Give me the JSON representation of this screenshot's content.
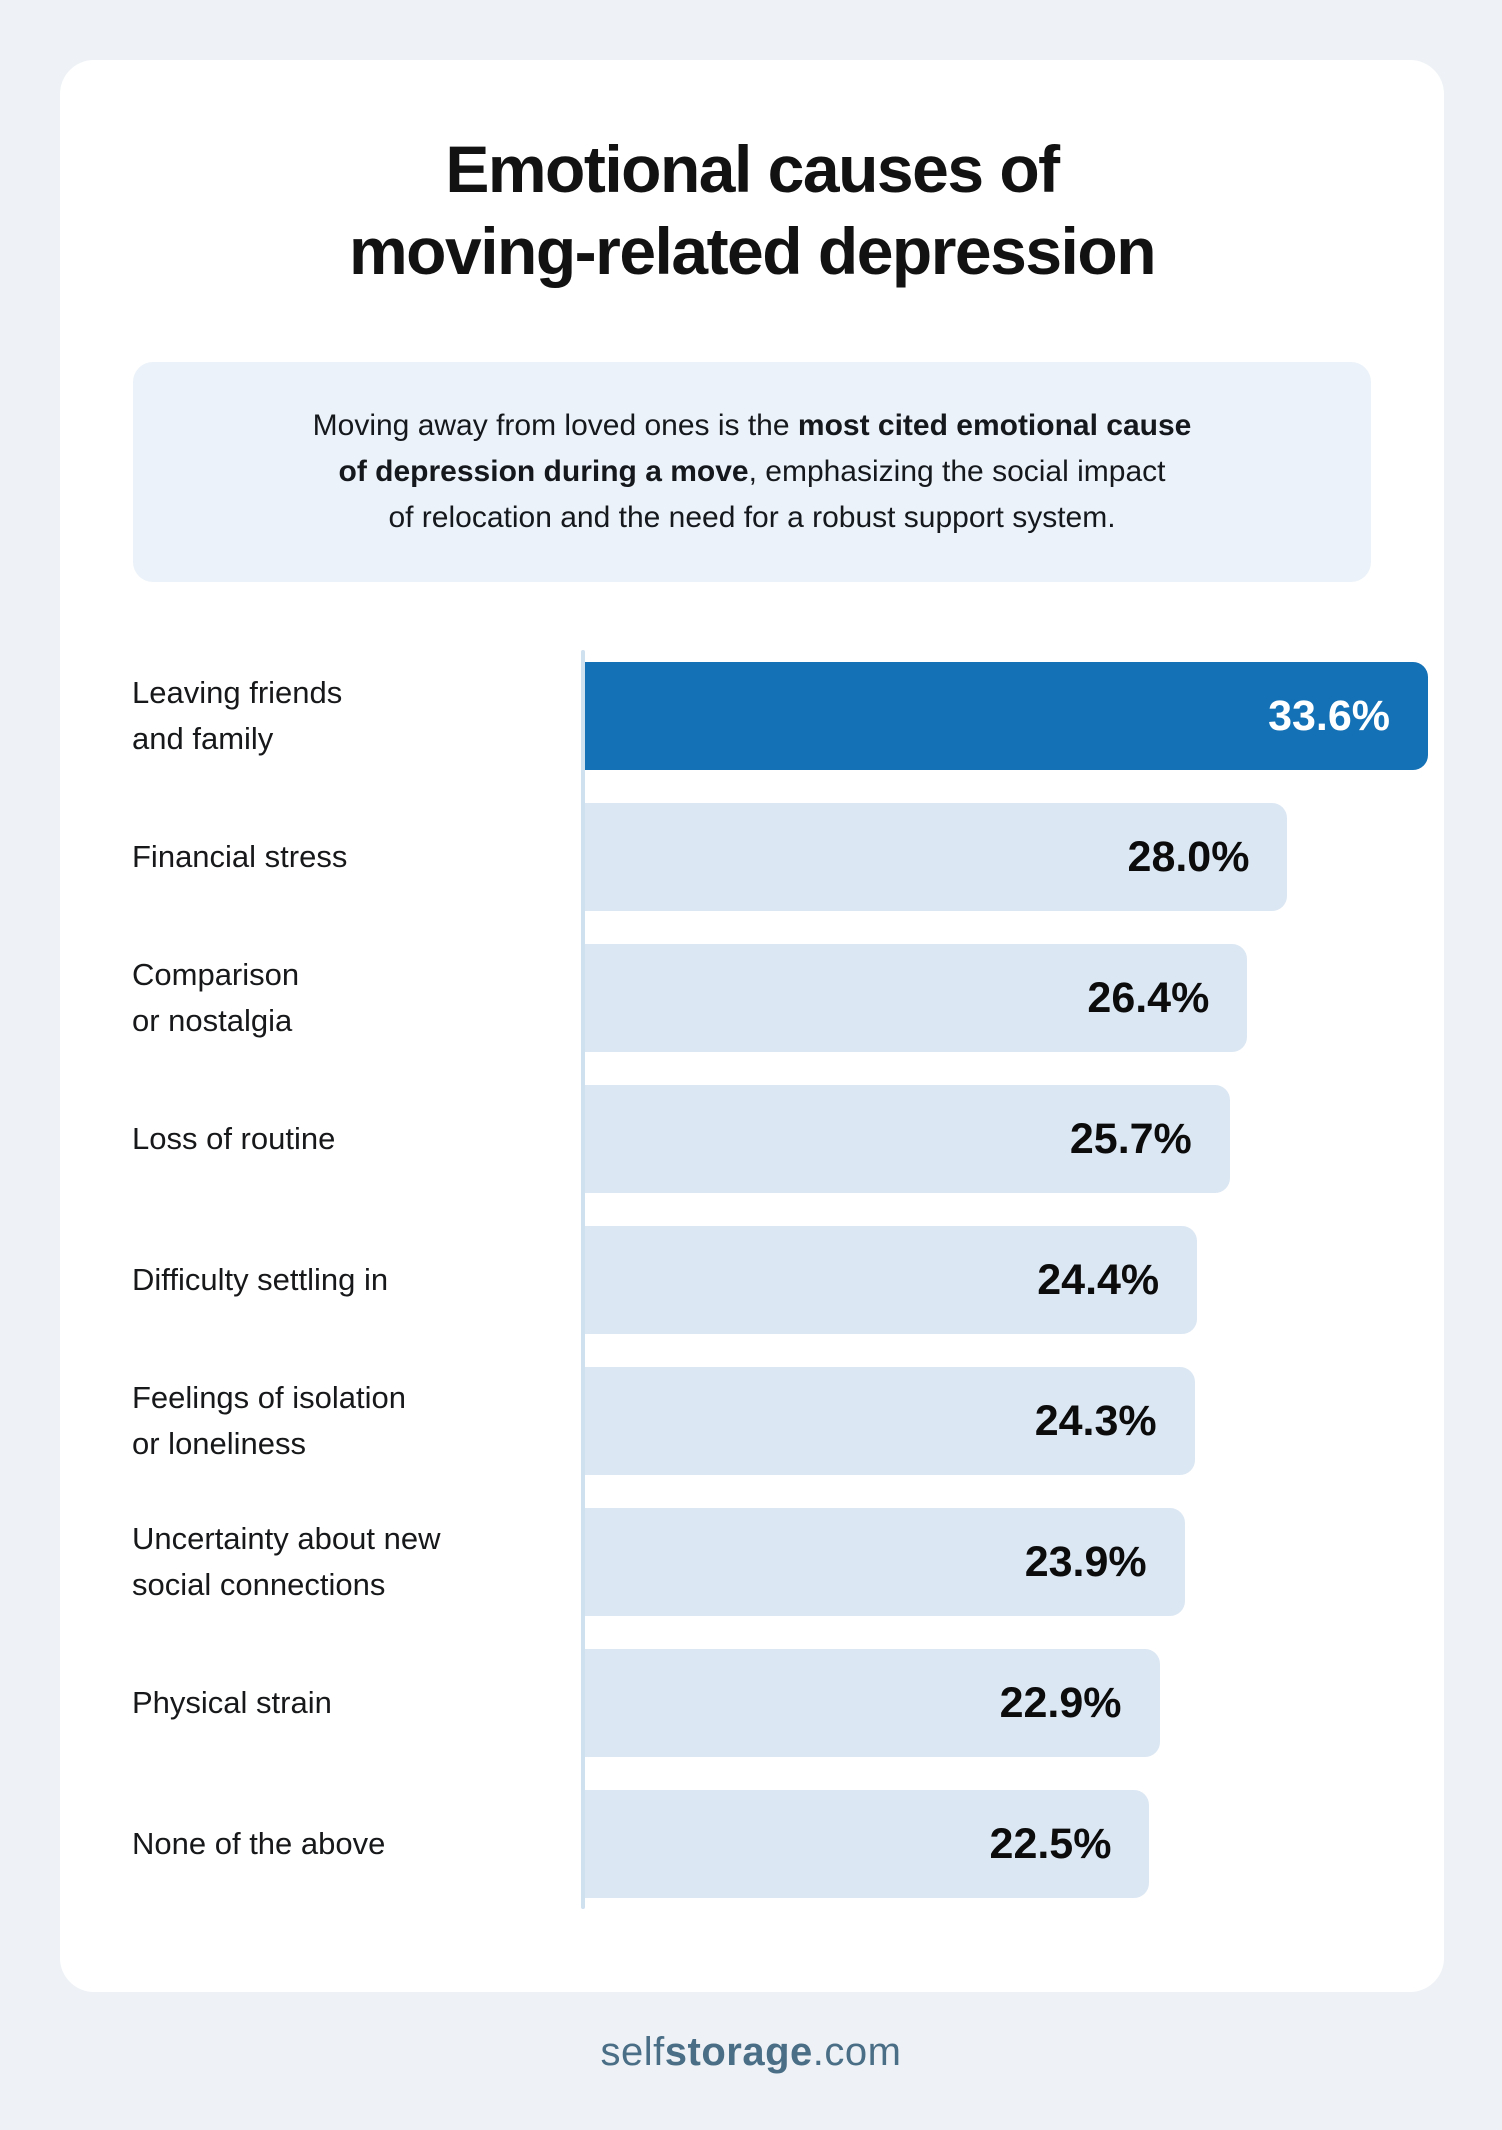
{
  "theme": {
    "page_bg": "#eef2f6",
    "card_bg": "#ffffff",
    "callout_bg": "#ebf2f9",
    "text": "#121212",
    "bar_highlight": "#1571b5",
    "bar_default": "#dbe7f3",
    "value_on_highlight": "#ffffff",
    "axis_line": "#cfe0ef",
    "brand": "#4a6e85"
  },
  "header": {
    "title_lines": [
      "Emotional causes of",
      "moving-related depression"
    ]
  },
  "callout": {
    "lines": [
      {
        "runs": [
          {
            "t": "Moving away from loved ones is the ",
            "b": false
          },
          {
            "t": "most cited emotional cause",
            "b": true
          }
        ]
      },
      {
        "runs": [
          {
            "t": "of depression during a move",
            "b": true
          },
          {
            "t": ", emphasizing the social impact",
            "b": false
          }
        ]
      },
      {
        "runs": [
          {
            "t": "of relocation and the need for a robust support system.",
            "b": false
          }
        ]
      }
    ]
  },
  "chart_data": {
    "type": "bar",
    "orientation": "horizontal",
    "title": "Emotional causes of moving-related depression",
    "categories": [
      "Leaving friends\nand family",
      "Financial stress",
      "Comparison\nor nostalgia",
      "Loss of routine",
      "Difficulty settling in",
      "Feelings of isolation\nor loneliness",
      "Uncertainty about new\nsocial connections",
      "Physical strain",
      "None of the above"
    ],
    "values": [
      33.6,
      28.0,
      26.4,
      25.7,
      24.4,
      24.3,
      23.9,
      22.9,
      22.5
    ],
    "value_labels": [
      "33.6%",
      "28.0%",
      "26.4%",
      "25.7%",
      "24.4%",
      "24.3%",
      "23.9%",
      "22.9%",
      "22.5%"
    ],
    "xlim": [
      0,
      33.6
    ],
    "highlight_index": 0,
    "grid": false,
    "legend": false
  },
  "footer": {
    "brand_regular": "self",
    "brand_bold": "storage",
    "brand_suffix": ".com"
  }
}
